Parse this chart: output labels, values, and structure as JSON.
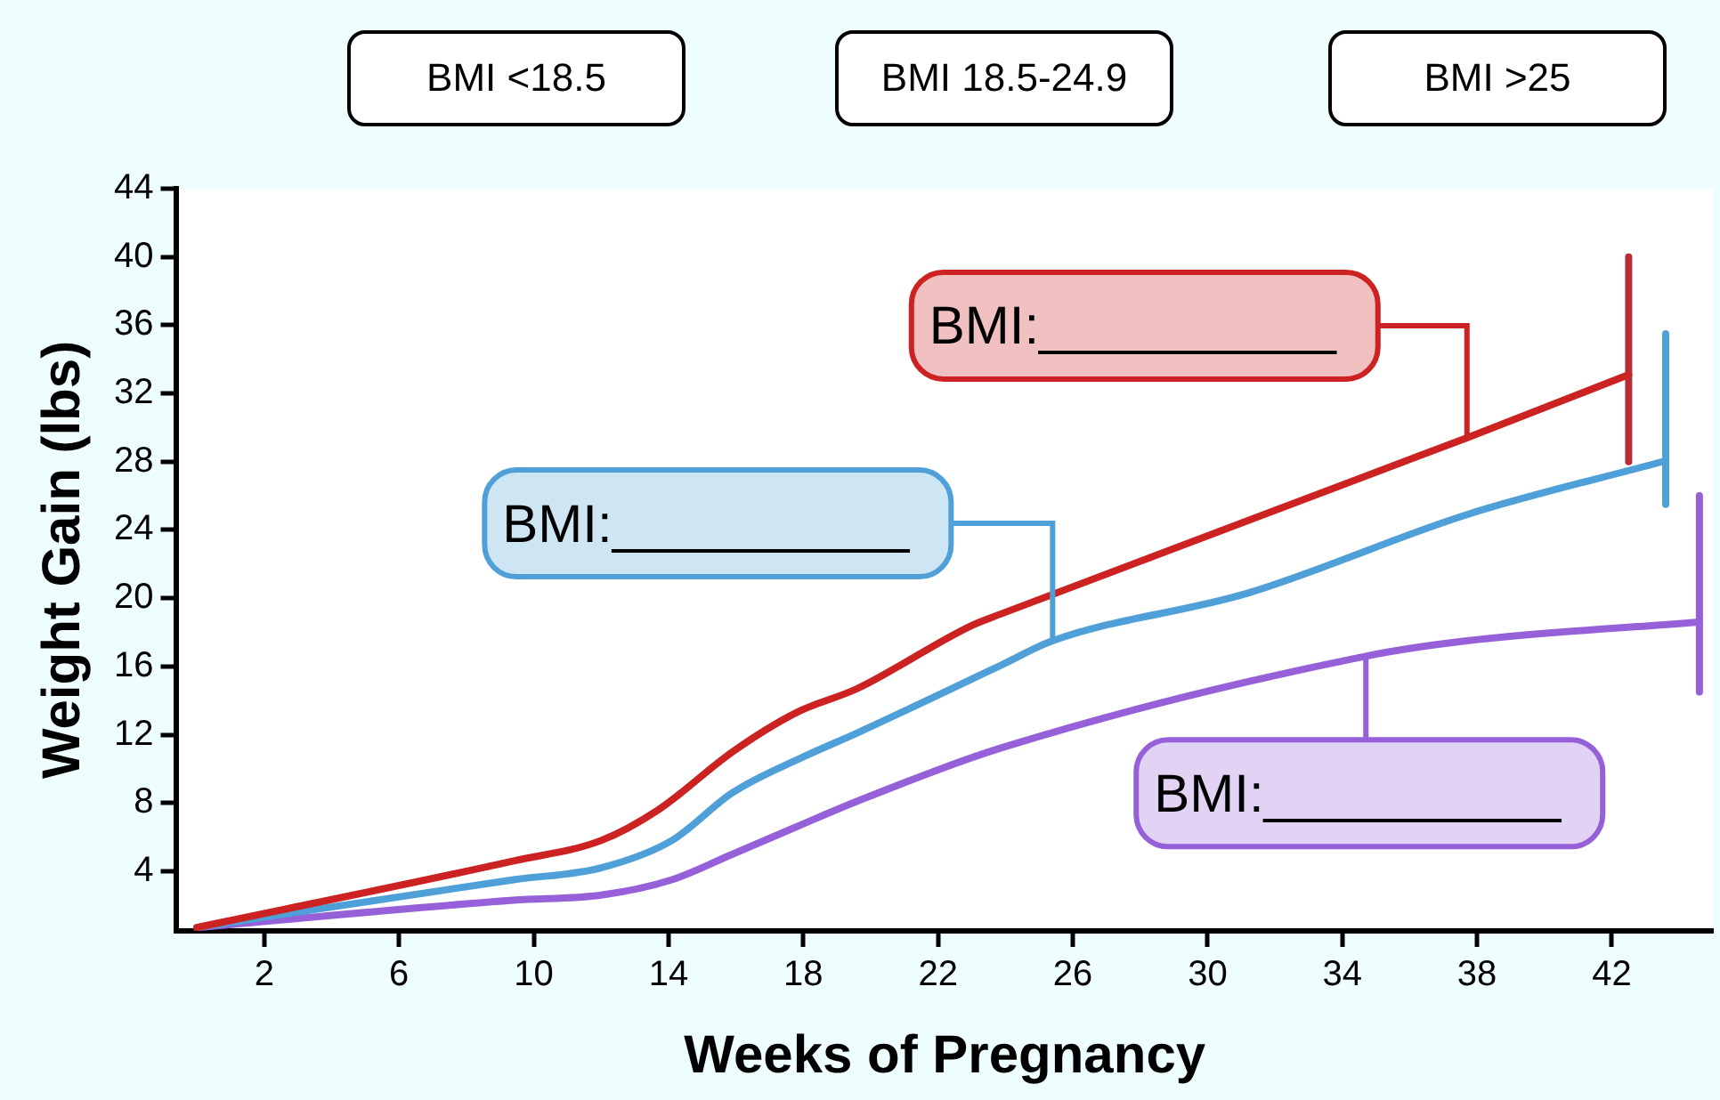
{
  "chart_data": {
    "type": "line",
    "xlabel": "Weeks of Pregnancy",
    "ylabel": "Weight Gain (lbs)",
    "xlim": [
      -0.6,
      45
    ],
    "xticks": [
      2,
      6,
      10,
      14,
      18,
      22,
      26,
      30,
      34,
      38,
      42
    ],
    "ylim": [
      0.5,
      44
    ],
    "yticks": [
      4,
      8,
      12,
      16,
      20,
      24,
      28,
      32,
      36,
      40,
      44
    ],
    "grid": false,
    "legend": false,
    "marker": "none",
    "line_style": "solid",
    "series": [
      {
        "color": "#cc2222",
        "x": [
          0,
          9.4,
          12,
          13.7,
          15.9,
          17.8,
          19.6,
          23,
          23.9,
          37.7,
          42.5
        ],
        "values": [
          0.7,
          4.6,
          5.8,
          7.6,
          11,
          13.3,
          14.7,
          18.4,
          19.1,
          29.4,
          33.1
        ]
      },
      {
        "color": "#4fa0d8",
        "x": [
          0,
          9.4,
          12,
          14.1,
          15.9,
          18,
          19.6,
          23.9,
          25.4,
          31.2,
          37.7,
          43.5
        ],
        "values": [
          0.7,
          3.5,
          4.2,
          5.8,
          8.6,
          10.7,
          12.1,
          16.1,
          17.5,
          20.3,
          24.9,
          28
        ]
      },
      {
        "color": "#9660d8",
        "x": [
          0,
          9.4,
          12,
          14.1,
          15.9,
          17.8,
          19.6,
          24,
          34.7,
          37.7,
          44.6
        ],
        "values": [
          0.7,
          2.3,
          2.6,
          3.5,
          5,
          6.6,
          8.1,
          11.3,
          16.6,
          17.5,
          18.6
        ]
      },
      {
        "color": "#b82c38",
        "x": [
          42.5,
          42.5
        ],
        "values": [
          28,
          40
        ]
      },
      {
        "color": "#4fa0d8",
        "x": [
          43.6,
          43.6
        ],
        "values": [
          25.5,
          35.5
        ]
      },
      {
        "color": "#9660d8",
        "x": [
          44.6,
          44.6
        ],
        "values": [
          14.5,
          26
        ]
      }
    ],
    "annotations": [
      "BMI <18.5",
      "BMI 18.5-24.9",
      "BMI >25",
      {
        "text": "BMI:__________",
        "x": 37.7,
        "y": 29.4
      },
      {
        "text": "BMI:__________",
        "x": 25.4,
        "y": 17.5
      },
      {
        "text": "BMI:__________",
        "x": 34.7,
        "y": 16.6
      }
    ]
  }
}
